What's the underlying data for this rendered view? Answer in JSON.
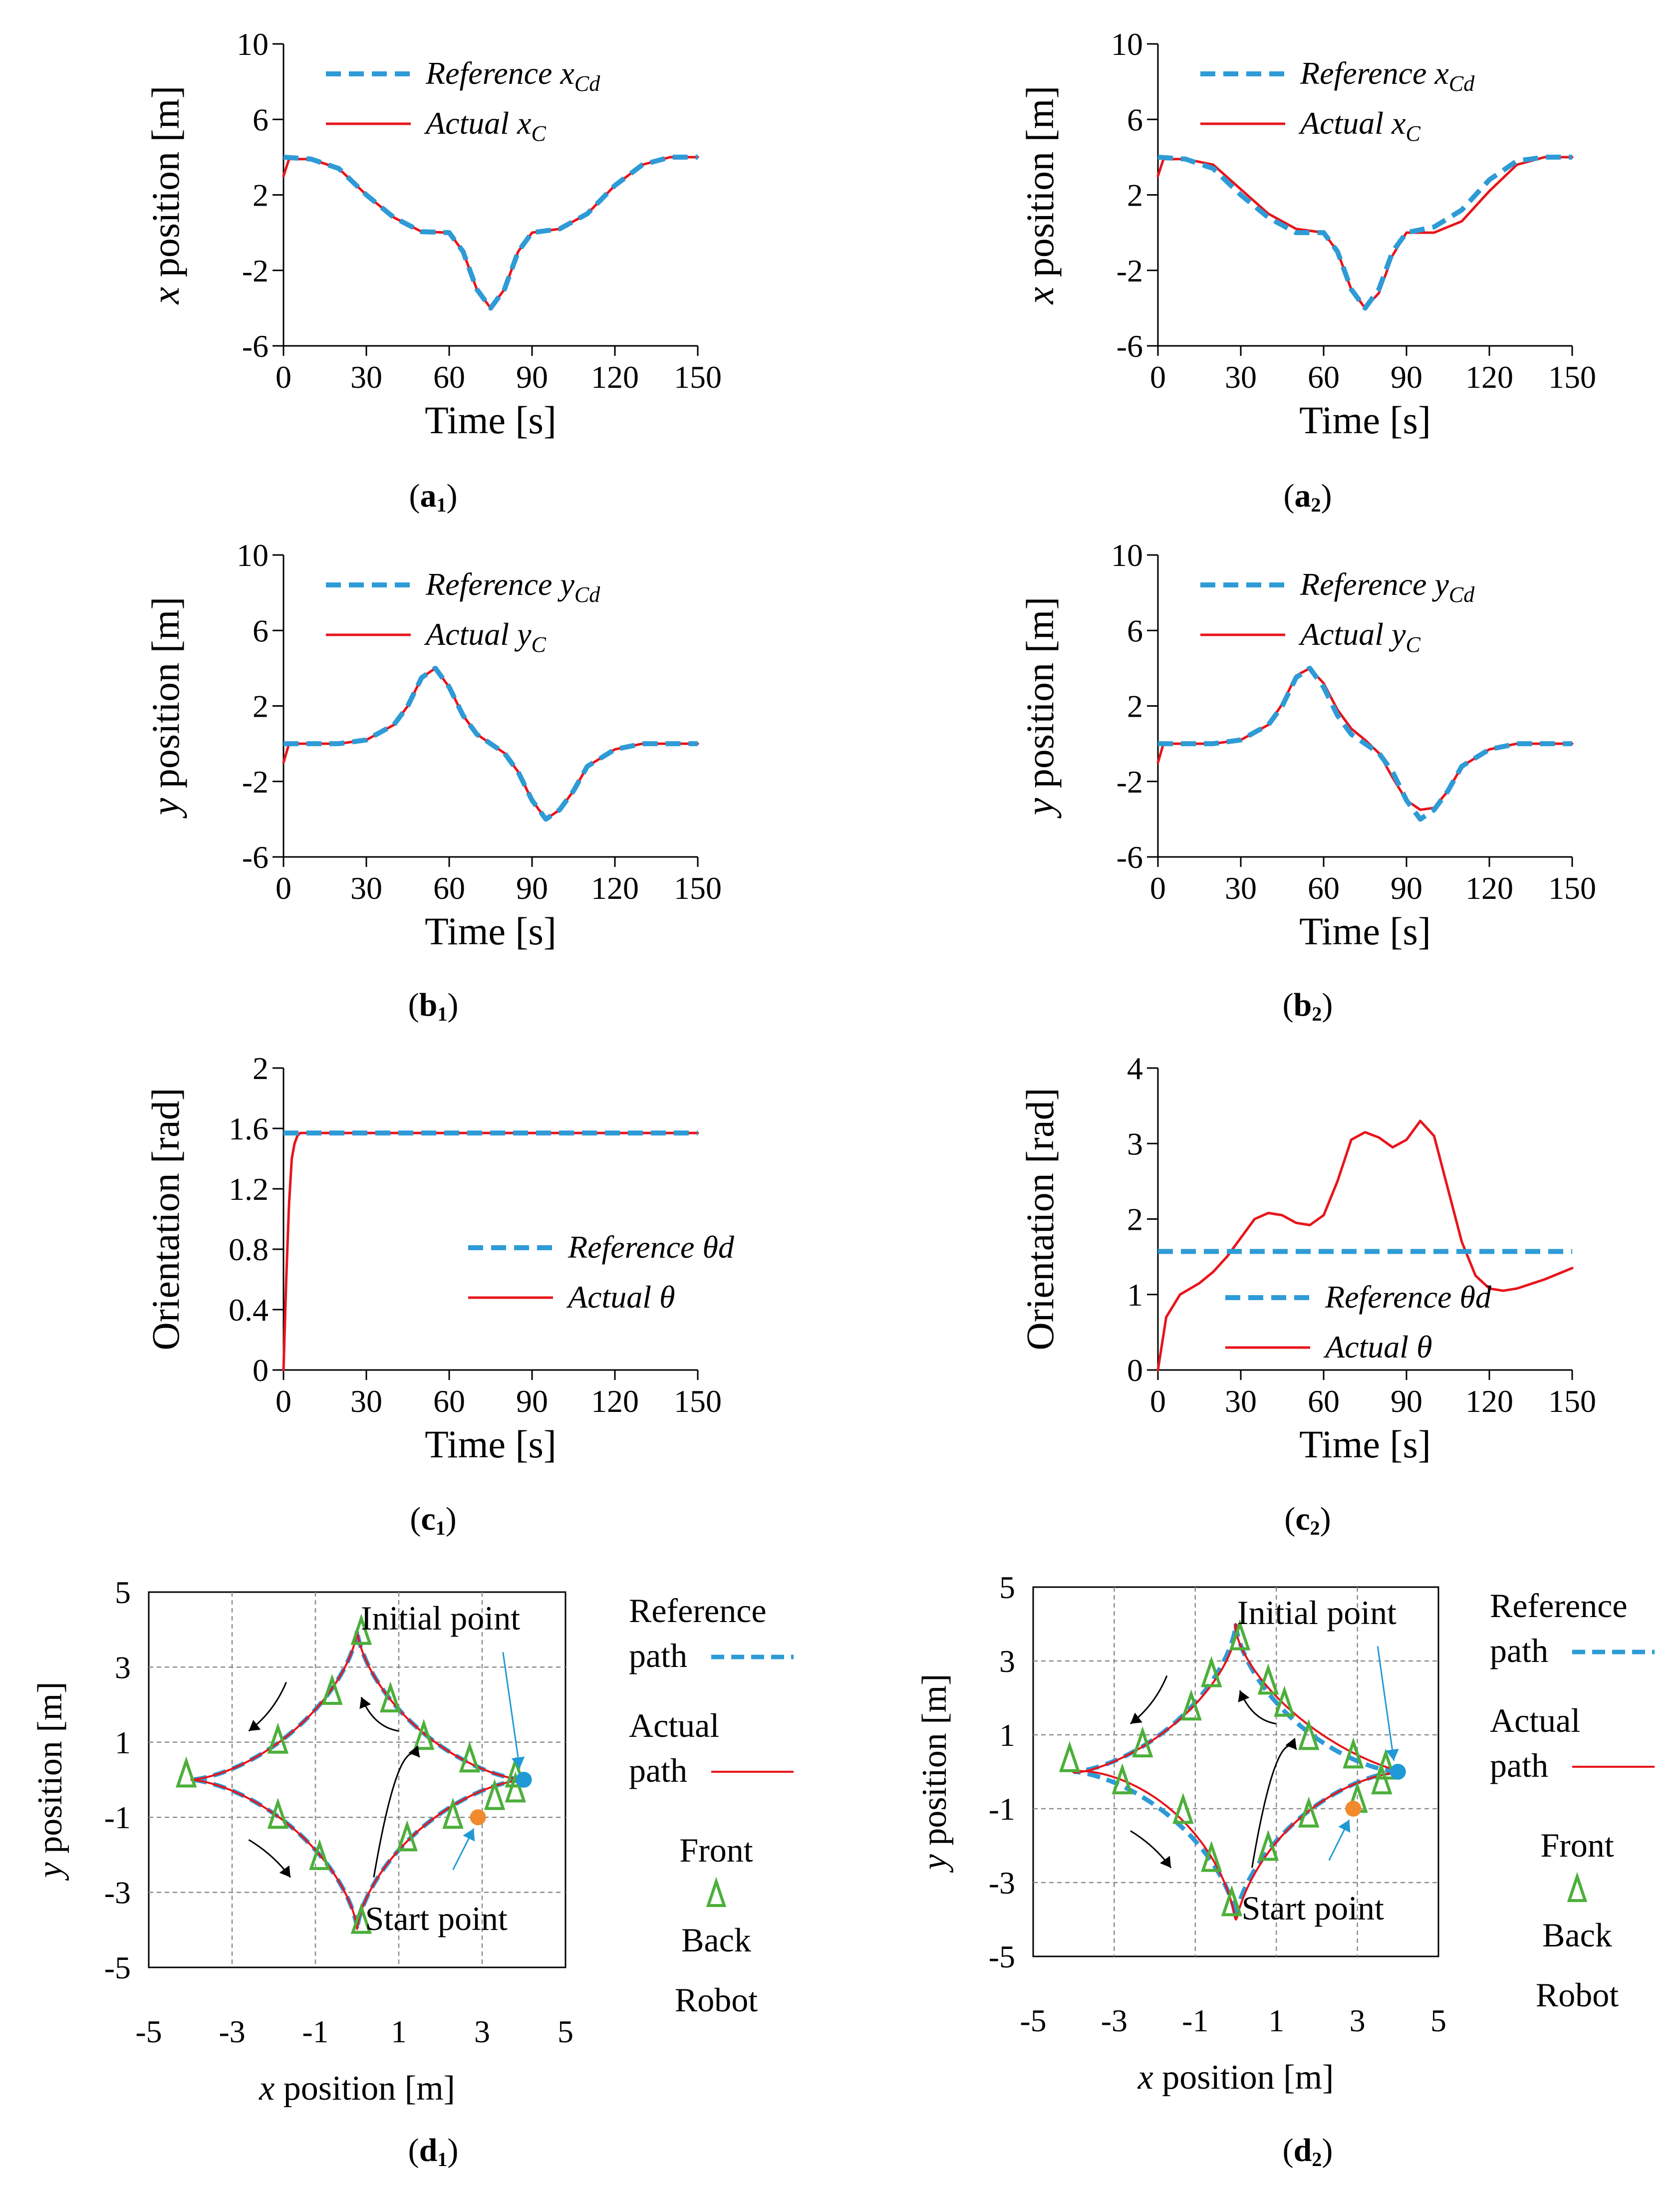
{
  "figure": {
    "panels": [
      {
        "id": "a1",
        "caption_letter": "a",
        "caption_sub": "1"
      },
      {
        "id": "a2",
        "caption_letter": "a",
        "caption_sub": "2"
      },
      {
        "id": "b1",
        "caption_letter": "b",
        "caption_sub": "1"
      },
      {
        "id": "b2",
        "caption_letter": "b",
        "caption_sub": "2"
      },
      {
        "id": "c1",
        "caption_letter": "c",
        "caption_sub": "1"
      },
      {
        "id": "c2",
        "caption_letter": "c",
        "caption_sub": "2"
      },
      {
        "id": "d1",
        "caption_letter": "d",
        "caption_sub": "1"
      },
      {
        "id": "d2",
        "caption_letter": "d",
        "caption_sub": "2"
      }
    ]
  },
  "colors": {
    "reference": "#2E9BD6",
    "actual": "#E8141B",
    "robot": "#4CAF3A",
    "initial_point": "#1F9AD6",
    "start_point": "#F08A2C",
    "grid": "#8C8C8C"
  },
  "chart_data": [
    {
      "id": "a1",
      "type": "line",
      "xlabel": "Time [s]",
      "ylabel_var": "x",
      "ylabel_rest": " position [m]",
      "xlim": [
        0,
        150
      ],
      "ylim": [
        -6,
        10
      ],
      "xticks": [
        0,
        30,
        60,
        90,
        120,
        150
      ],
      "yticks": [
        -6,
        -2,
        2,
        6,
        10
      ],
      "legend": "top-left",
      "series": [
        {
          "name": "Reference",
          "var": "x",
          "sub": "Cd",
          "style": "dashed",
          "x": [
            0,
            10,
            20,
            30,
            40,
            50,
            60,
            65,
            70,
            75,
            80,
            85,
            90,
            100,
            110,
            120,
            130,
            140,
            150
          ],
          "y": [
            4,
            3.9,
            3.4,
            2,
            0.8,
            0.05,
            0,
            -1,
            -3,
            -4,
            -3,
            -1,
            0,
            0.2,
            1,
            2.5,
            3.6,
            4,
            4
          ]
        },
        {
          "name": "Actual",
          "var": "x",
          "sub": "C",
          "style": "solid",
          "x": [
            0,
            2,
            10,
            20,
            30,
            40,
            50,
            60,
            65,
            70,
            75,
            80,
            85,
            90,
            100,
            110,
            120,
            130,
            140,
            150
          ],
          "y": [
            3,
            3.9,
            3.9,
            3.4,
            2,
            0.8,
            0.05,
            0,
            -1,
            -3,
            -4,
            -3,
            -1,
            0,
            0.2,
            1,
            2.5,
            3.6,
            4,
            4
          ]
        }
      ]
    },
    {
      "id": "a2",
      "type": "line",
      "xlabel": "Time [s]",
      "ylabel_var": "x",
      "ylabel_rest": " position [m]",
      "xlim": [
        0,
        150
      ],
      "ylim": [
        -6,
        10
      ],
      "xticks": [
        0,
        30,
        60,
        90,
        120,
        150
      ],
      "yticks": [
        -6,
        -2,
        2,
        6,
        10
      ],
      "legend": "top-left",
      "series": [
        {
          "name": "Reference",
          "var": "x",
          "sub": "Cd",
          "style": "dashed",
          "x": [
            0,
            10,
            20,
            30,
            40,
            50,
            60,
            65,
            70,
            75,
            80,
            85,
            90,
            100,
            110,
            120,
            130,
            140,
            150
          ],
          "y": [
            4,
            3.9,
            3.4,
            2,
            0.8,
            0,
            0,
            -1,
            -3,
            -4,
            -3,
            -1,
            0,
            0.3,
            1.2,
            2.8,
            3.8,
            4,
            4
          ]
        },
        {
          "name": "Actual",
          "var": "x",
          "sub": "C",
          "style": "solid",
          "x": [
            0,
            2,
            10,
            20,
            30,
            40,
            50,
            60,
            65,
            70,
            75,
            80,
            85,
            90,
            100,
            110,
            120,
            130,
            140,
            150
          ],
          "y": [
            3,
            3.9,
            3.9,
            3.6,
            2.3,
            1,
            0.2,
            0,
            -1,
            -3,
            -4,
            -3.2,
            -1.2,
            0,
            0,
            0.6,
            2.2,
            3.6,
            4,
            4
          ]
        }
      ]
    },
    {
      "id": "b1",
      "type": "line",
      "xlabel": "Time [s]",
      "ylabel_var": "y",
      "ylabel_rest": " position [m]",
      "xlim": [
        0,
        150
      ],
      "ylim": [
        -6,
        10
      ],
      "xticks": [
        0,
        30,
        60,
        90,
        120,
        150
      ],
      "yticks": [
        -6,
        -2,
        2,
        6,
        10
      ],
      "legend": "top-left",
      "series": [
        {
          "name": "Reference",
          "var": "y",
          "sub": "Cd",
          "style": "dashed",
          "x": [
            0,
            10,
            20,
            30,
            40,
            45,
            50,
            55,
            60,
            65,
            70,
            75,
            80,
            85,
            90,
            95,
            100,
            105,
            110,
            120,
            130,
            140,
            150
          ],
          "y": [
            0,
            0,
            0,
            0.2,
            1,
            2,
            3.5,
            4,
            3,
            1.5,
            0.5,
            0,
            -0.5,
            -1.5,
            -3,
            -4,
            -3.5,
            -2.5,
            -1.2,
            -0.3,
            0,
            0,
            0
          ]
        },
        {
          "name": "Actual",
          "var": "y",
          "sub": "C",
          "style": "solid",
          "x": [
            0,
            2,
            10,
            20,
            30,
            40,
            45,
            50,
            55,
            60,
            65,
            70,
            75,
            80,
            85,
            90,
            95,
            100,
            105,
            110,
            120,
            130,
            140,
            150
          ],
          "y": [
            -1,
            0,
            0,
            0,
            0.2,
            1,
            2,
            3.5,
            4,
            3,
            1.5,
            0.5,
            0,
            -0.5,
            -1.5,
            -3,
            -4,
            -3.5,
            -2.5,
            -1.2,
            -0.3,
            0,
            0,
            0
          ]
        }
      ]
    },
    {
      "id": "b2",
      "type": "line",
      "xlabel": "Time [s]",
      "ylabel_var": "y",
      "ylabel_rest": " position [m]",
      "xlim": [
        0,
        150
      ],
      "ylim": [
        -6,
        10
      ],
      "xticks": [
        0,
        30,
        60,
        90,
        120,
        150
      ],
      "yticks": [
        -6,
        -2,
        2,
        6,
        10
      ],
      "legend": "top-left",
      "series": [
        {
          "name": "Reference",
          "var": "y",
          "sub": "Cd",
          "style": "dashed",
          "x": [
            0,
            10,
            20,
            30,
            40,
            45,
            50,
            55,
            60,
            65,
            70,
            75,
            80,
            85,
            90,
            95,
            100,
            105,
            110,
            120,
            130,
            140,
            150
          ],
          "y": [
            0,
            0,
            0,
            0.2,
            1,
            2,
            3.5,
            4,
            3,
            1.5,
            0.5,
            0,
            -0.5,
            -1.5,
            -3,
            -4,
            -3.5,
            -2.5,
            -1.2,
            -0.3,
            0,
            0,
            0
          ]
        },
        {
          "name": "Actual",
          "var": "y",
          "sub": "C",
          "style": "solid",
          "x": [
            0,
            2,
            10,
            20,
            30,
            40,
            45,
            50,
            55,
            60,
            65,
            70,
            75,
            80,
            85,
            90,
            95,
            100,
            105,
            110,
            120,
            130,
            140,
            150
          ],
          "y": [
            -1,
            0,
            0,
            0,
            0.2,
            1,
            2.1,
            3.6,
            4,
            3.2,
            1.8,
            0.8,
            0.2,
            -0.5,
            -1.8,
            -3,
            -3.5,
            -3.4,
            -2.5,
            -1.2,
            -0.3,
            0,
            0,
            0
          ]
        }
      ]
    },
    {
      "id": "c1",
      "type": "line",
      "xlabel": "Time [s]",
      "ylabel": "Orientation [rad]",
      "xlim": [
        0,
        150
      ],
      "ylim": [
        0,
        2
      ],
      "xticks": [
        0,
        30,
        60,
        90,
        120,
        150
      ],
      "yticks": [
        0,
        0.4,
        0.8,
        1.2,
        1.6,
        2
      ],
      "yticklabels": [
        "0",
        "0.4",
        "0.8",
        "1.2",
        "1.6",
        "2"
      ],
      "legend": "center-right",
      "series": [
        {
          "name": "Reference",
          "var": "θd",
          "sub": "",
          "style": "dashed",
          "x": [
            0,
            150
          ],
          "y": [
            1.57,
            1.57
          ]
        },
        {
          "name": "Actual",
          "var": "θ",
          "sub": "",
          "style": "solid",
          "x": [
            0,
            1,
            2,
            3,
            4,
            5,
            6,
            8,
            10,
            150
          ],
          "y": [
            0,
            0.6,
            1.1,
            1.4,
            1.5,
            1.55,
            1.57,
            1.57,
            1.57,
            1.57
          ]
        }
      ]
    },
    {
      "id": "c2",
      "type": "line",
      "xlabel": "Time [s]",
      "ylabel": "Orientation [rad]",
      "xlim": [
        0,
        150
      ],
      "ylim": [
        0,
        4
      ],
      "xticks": [
        0,
        30,
        60,
        90,
        120,
        150
      ],
      "yticks": [
        0,
        1,
        2,
        3,
        4
      ],
      "legend": "bottom-right",
      "series": [
        {
          "name": "Reference",
          "var": "θd",
          "sub": "",
          "style": "dashed",
          "x": [
            0,
            150
          ],
          "y": [
            1.57,
            1.57
          ]
        },
        {
          "name": "Actual",
          "var": "θ",
          "sub": "",
          "style": "solid",
          "x": [
            0,
            3,
            8,
            15,
            20,
            25,
            30,
            35,
            40,
            45,
            50,
            55,
            60,
            65,
            70,
            75,
            80,
            85,
            90,
            95,
            100,
            105,
            110,
            115,
            120,
            125,
            130,
            140,
            150
          ],
          "y": [
            0,
            0.7,
            1,
            1.15,
            1.3,
            1.5,
            1.75,
            2,
            2.08,
            2.05,
            1.95,
            1.92,
            2.05,
            2.5,
            3.05,
            3.15,
            3.08,
            2.95,
            3.05,
            3.3,
            3.1,
            2.4,
            1.7,
            1.25,
            1.08,
            1.05,
            1.08,
            1.2,
            1.35
          ]
        }
      ]
    },
    {
      "id": "d1",
      "type": "path",
      "xlabel_var": "x",
      "xlabel_rest": " position [m]",
      "ylabel_var": "y",
      "ylabel_rest": " position [m]",
      "xlim": [
        -5,
        5
      ],
      "ylim": [
        -5,
        5
      ],
      "xticks": [
        -5,
        -3,
        -1,
        1,
        3,
        5
      ],
      "yticks": [
        -5,
        -3,
        -1,
        1,
        3,
        5
      ],
      "astroid_radius": 4,
      "actual_deviation": 0,
      "initial_point": [
        4,
        0
      ],
      "start_point": [
        2.9,
        -1.0
      ],
      "robot_markers": [
        [
          3.8,
          0.1
        ],
        [
          2.7,
          0.5
        ],
        [
          1.6,
          1.1
        ],
        [
          0.8,
          2.1
        ],
        [
          0.1,
          3.9
        ],
        [
          -0.6,
          2.3
        ],
        [
          -1.9,
          1.0
        ],
        [
          -4.1,
          0.1
        ],
        [
          -1.9,
          -1.0
        ],
        [
          -0.9,
          -2.1
        ],
        [
          0.1,
          -3.8
        ],
        [
          1.2,
          -1.6
        ],
        [
          2.3,
          -1.0
        ],
        [
          3.3,
          -0.5
        ],
        [
          3.8,
          -0.3
        ]
      ],
      "annotation_initial": "Initial point",
      "annotation_start": "Start point",
      "legend": {
        "reference": [
          "Reference",
          "path"
        ],
        "actual": [
          "Actual",
          "path"
        ],
        "robot": [
          "Front",
          "Back",
          "Robot"
        ]
      }
    },
    {
      "id": "d2",
      "type": "path",
      "xlabel_var": "x",
      "xlabel_rest": " position [m]",
      "ylabel_var": "y",
      "ylabel_rest": " position [m]",
      "xlim": [
        -5,
        5
      ],
      "ylim": [
        -5,
        5
      ],
      "xticks": [
        -5,
        -3,
        -1,
        1,
        3,
        5
      ],
      "yticks": [
        -5,
        -3,
        -1,
        1,
        3,
        5
      ],
      "astroid_radius": 4,
      "actual_deviation": 0.18,
      "initial_point": [
        4,
        0
      ],
      "start_point": [
        2.9,
        -1.0
      ],
      "robot_markers": [
        [
          3.7,
          0.1
        ],
        [
          2.9,
          0.4
        ],
        [
          1.8,
          0.9
        ],
        [
          1.2,
          1.8
        ],
        [
          0.8,
          2.4
        ],
        [
          0.1,
          3.6
        ],
        [
          -0.6,
          2.6
        ],
        [
          -1.1,
          1.7
        ],
        [
          -2.3,
          0.7
        ],
        [
          -4.1,
          0.3
        ],
        [
          -2.8,
          -0.3
        ],
        [
          -1.3,
          -1.1
        ],
        [
          -0.6,
          -2.4
        ],
        [
          -0.1,
          -3.6
        ],
        [
          0.8,
          -2.1
        ],
        [
          1.8,
          -1.2
        ],
        [
          3.0,
          -0.8
        ],
        [
          3.6,
          -0.3
        ]
      ],
      "annotation_initial": "Initial point",
      "annotation_start": "Start point",
      "legend": {
        "reference": [
          "Reference",
          "path"
        ],
        "actual": [
          "Actual",
          "path"
        ],
        "robot": [
          "Front",
          "Back",
          "Robot"
        ]
      }
    }
  ]
}
